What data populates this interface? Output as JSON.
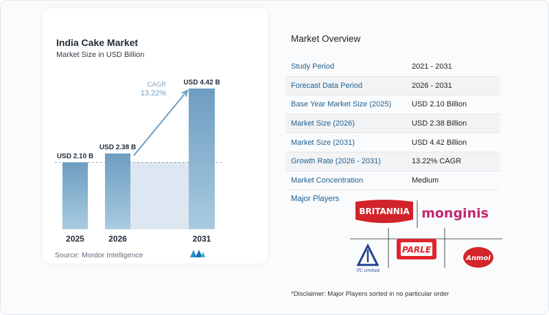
{
  "chart_data": {
    "type": "bar",
    "title": "India Cake Market",
    "subtitle": "Market Size in USD Billion",
    "categories": [
      "2025",
      "2026",
      "2031"
    ],
    "values": [
      2.1,
      2.38,
      4.42
    ],
    "data_labels": [
      "USD 2.10 B",
      "USD 2.38 B",
      "USD 4.42 B"
    ],
    "cagr_label": "CAGR",
    "cagr_value": "13.22%",
    "ylim": [
      0,
      4.7
    ],
    "colors": {
      "bar": "#6d9dc1",
      "bar_light": "#a8cbe0",
      "band": "#dde7f1",
      "arrow": "#6d9dc1"
    }
  },
  "source": "Source:  Mordor Intelligence",
  "overview": {
    "title": "Market Overview",
    "rows": [
      {
        "label": "Study Period",
        "value": "2021 - 2031"
      },
      {
        "label": "Forecast Data Period",
        "value": "2026 - 2031"
      },
      {
        "label": "Base Year Market Size (2025)",
        "value": "USD 2.10 Billion"
      },
      {
        "label": "Market Size (2026)",
        "value": "USD 2.38 Billion"
      },
      {
        "label": "Market Size (2031)",
        "value": "USD 4.42 Billion"
      },
      {
        "label": "Growth Rate (2026 - 2031)",
        "value": "13.22% CAGR"
      },
      {
        "label": "Market Concentration",
        "value": "Medium"
      }
    ]
  },
  "players": {
    "title": "Major Players",
    "logos": [
      {
        "name": "BRITANNIA",
        "color": "#d2232a"
      },
      {
        "name": "monginis",
        "color": "#c2256f"
      },
      {
        "name": "PARLE",
        "color": "#e0242b"
      },
      {
        "name": "Anmol",
        "color": "#d3262b"
      },
      {
        "name": "ITC Limited",
        "color": "#1f3f8f"
      }
    ]
  },
  "disclaimer": "*Disclaimer: Major Players sorted in no particular order"
}
